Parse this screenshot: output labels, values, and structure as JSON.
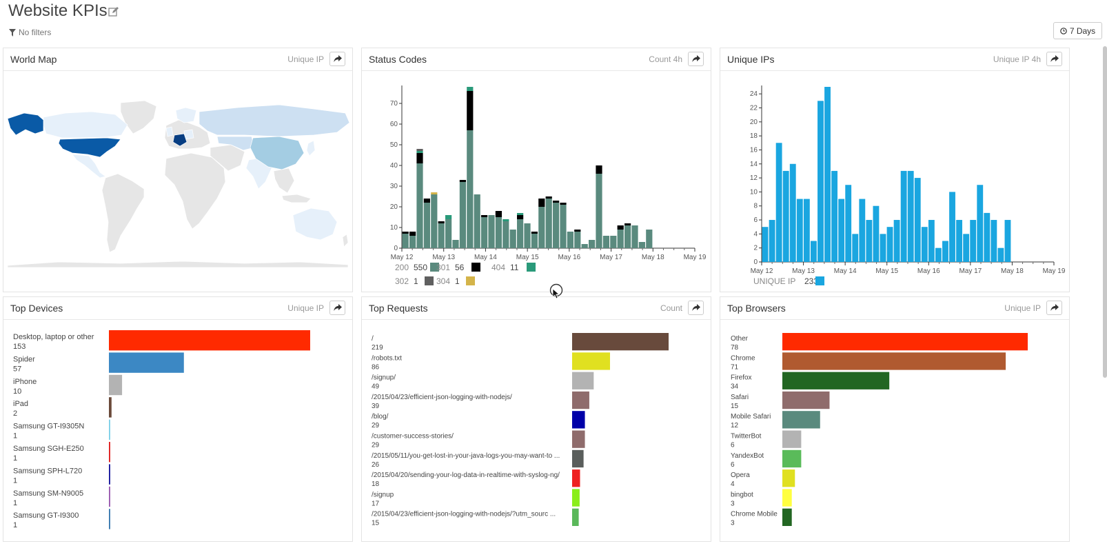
{
  "header": {
    "title": "Website KPIs",
    "filters_label": "No filters",
    "range_label": "7 Days"
  },
  "panels": {
    "world_map": {
      "title": "World Map",
      "meta": "Unique IP"
    },
    "status_codes": {
      "title": "Status Codes",
      "meta": "Count  4h"
    },
    "unique_ips": {
      "title": "Unique IPs",
      "meta": "Unique IP  4h"
    },
    "top_devices": {
      "title": "Top Devices",
      "meta": "Unique IP"
    },
    "top_requests": {
      "title": "Top Requests",
      "meta": "Count"
    },
    "top_browsers": {
      "title": "Top Browsers",
      "meta": "Unique IP"
    }
  },
  "chart_data": [
    {
      "id": "status_codes",
      "type": "bar",
      "stacked": true,
      "x_ticks": [
        "May 12",
        "May 13",
        "May 14",
        "May 15",
        "May 16",
        "May 17",
        "May 18",
        "May 19"
      ],
      "y_ticks": [
        0,
        10,
        20,
        30,
        40,
        50,
        60,
        70
      ],
      "ylim": [
        0,
        78
      ],
      "series": [
        {
          "name": "200",
          "color": "#5a8a7e",
          "values": [
            7,
            6,
            41,
            22,
            26,
            12,
            14,
            4,
            32,
            57,
            26,
            15,
            16,
            15,
            13,
            9,
            14,
            12,
            7,
            20,
            24,
            22,
            21,
            8,
            8,
            2,
            4,
            36,
            6,
            6,
            9,
            11,
            11,
            3,
            9
          ]
        },
        {
          "name": "301",
          "color": "#000000",
          "values": [
            1,
            2,
            5,
            2,
            0,
            1,
            0,
            0,
            1,
            19,
            0,
            1,
            0,
            3,
            0,
            0,
            2,
            0,
            1,
            4,
            1,
            1,
            1,
            0,
            1,
            0,
            0,
            4,
            0,
            0,
            2,
            1,
            0,
            0,
            0
          ]
        },
        {
          "name": "404",
          "color": "#2a9a7a",
          "values": [
            0,
            0,
            1,
            0,
            0,
            0,
            2,
            0,
            0,
            2,
            0,
            0,
            0,
            0,
            1,
            0,
            1,
            0,
            0,
            0,
            0,
            0,
            0,
            0,
            0,
            0,
            0,
            0,
            0,
            0,
            0,
            0,
            0,
            0,
            0
          ]
        },
        {
          "name": "302",
          "color": "#606060",
          "values": [
            0,
            0,
            1,
            0,
            0,
            0,
            0,
            0,
            0,
            0,
            0,
            0,
            0,
            0,
            0,
            0,
            0,
            0,
            0,
            0,
            0,
            0,
            0,
            0,
            0,
            0,
            0,
            0,
            0,
            0,
            0,
            0,
            0,
            0,
            0
          ]
        },
        {
          "name": "304",
          "color": "#d4b44a",
          "values": [
            0,
            0,
            0,
            0,
            1,
            0,
            0,
            0,
            0,
            0,
            0,
            0,
            0,
            0,
            0,
            0,
            0,
            0,
            0,
            0,
            0,
            0,
            0,
            0,
            0,
            0,
            0,
            0,
            0,
            0,
            0,
            0,
            0,
            0,
            0
          ]
        }
      ],
      "legend": [
        {
          "code": "200",
          "count": "550",
          "color": "#5a8a7e"
        },
        {
          "code": "301",
          "count": "56",
          "color": "#000000"
        },
        {
          "code": "404",
          "count": "11",
          "color": "#2a9a7a"
        },
        {
          "code": "302",
          "count": "1",
          "color": "#606060"
        },
        {
          "code": "304",
          "count": "1",
          "color": "#d4b44a"
        }
      ]
    },
    {
      "id": "unique_ips",
      "type": "bar",
      "x_ticks": [
        "May 12",
        "May 13",
        "May 14",
        "May 15",
        "May 16",
        "May 17",
        "May 18",
        "May 19"
      ],
      "y_ticks": [
        0,
        2,
        4,
        6,
        8,
        10,
        12,
        14,
        16,
        18,
        20,
        22,
        24
      ],
      "ylim": [
        0,
        25
      ],
      "series": [
        {
          "name": "UNIQUE IP",
          "color": "#1aa6e0",
          "values": [
            5,
            6,
            17,
            13,
            14,
            9,
            9,
            3,
            23,
            25,
            13,
            9,
            11,
            4,
            9,
            6,
            8,
            4,
            5,
            6,
            13,
            13,
            12,
            5,
            6,
            2,
            3,
            10,
            6,
            4,
            6,
            11,
            7,
            6,
            2,
            6
          ]
        }
      ],
      "legend": [
        {
          "label": "UNIQUE IP",
          "count": "233",
          "color": "#1aa6e0"
        }
      ]
    },
    {
      "id": "top_devices",
      "type": "bar",
      "orientation": "horizontal",
      "items": [
        {
          "label": "Desktop, laptop or other",
          "value": 153,
          "color": "#ff2a00"
        },
        {
          "label": "Spider",
          "value": 57,
          "color": "#3c88c4"
        },
        {
          "label": "iPhone",
          "value": 10,
          "color": "#b3b3b3"
        },
        {
          "label": "iPad",
          "value": 2,
          "color": "#6b4a3a"
        },
        {
          "label": "Samsung GT-I9305N",
          "value": 1,
          "color": "#7fd0e8"
        },
        {
          "label": "Samsung SGH-E250",
          "value": 1,
          "color": "#e02020"
        },
        {
          "label": "Samsung SPH-L720",
          "value": 1,
          "color": "#1a1a9e"
        },
        {
          "label": "Samsung SM-N9005",
          "value": 1,
          "color": "#9a5ab0"
        },
        {
          "label": "Samsung GT-I9300",
          "value": 1,
          "color": "#3a7ab0"
        }
      ]
    },
    {
      "id": "top_requests",
      "type": "bar",
      "orientation": "horizontal",
      "items": [
        {
          "label": "/",
          "value": 219,
          "color": "#684a3c"
        },
        {
          "label": "/robots.txt",
          "value": 86,
          "color": "#e0e020"
        },
        {
          "label": "/signup/",
          "value": 49,
          "color": "#b3b3b3"
        },
        {
          "label": "/2015/04/23/efficient-json-logging-with-nodejs/",
          "value": 39,
          "color": "#8f6c6c"
        },
        {
          "label": "/blog/",
          "value": 29,
          "color": "#0000a8"
        },
        {
          "label": "/customer-success-stories/",
          "value": 29,
          "color": "#8f6c6c"
        },
        {
          "label": "/2015/05/11/you-get-lost-in-your-java-logs-you-may-want-to ...",
          "value": 26,
          "color": "#5a5e5c"
        },
        {
          "label": "/2015/04/20/sending-your-log-data-in-realtime-with-syslog-ng/",
          "value": 18,
          "color": "#ee2020"
        },
        {
          "label": "/signup",
          "value": 17,
          "color": "#8aee1a"
        },
        {
          "label": "/2015/04/23/efficient-json-logging-with-nodejs/?utm_sourc ...",
          "value": 15,
          "color": "#5ab85a"
        }
      ]
    },
    {
      "id": "top_browsers",
      "type": "bar",
      "orientation": "horizontal",
      "items": [
        {
          "label": "Other",
          "value": 78,
          "color": "#ff2a00"
        },
        {
          "label": "Chrome",
          "value": 71,
          "color": "#b05a30"
        },
        {
          "label": "Firefox",
          "value": 34,
          "color": "#226622"
        },
        {
          "label": "Safari",
          "value": 15,
          "color": "#8f6c6c"
        },
        {
          "label": "Mobile Safari",
          "value": 12,
          "color": "#5a8a7e"
        },
        {
          "label": "TwitterBot",
          "value": 6,
          "color": "#b3b3b3"
        },
        {
          "label": "YandexBot",
          "value": 6,
          "color": "#5abb5a"
        },
        {
          "label": "Opera",
          "value": 4,
          "color": "#e0e020"
        },
        {
          "label": "bingbot",
          "value": 3,
          "color": "#ffff40"
        },
        {
          "label": "Chrome Mobile",
          "value": 3,
          "color": "#226622"
        }
      ]
    }
  ]
}
